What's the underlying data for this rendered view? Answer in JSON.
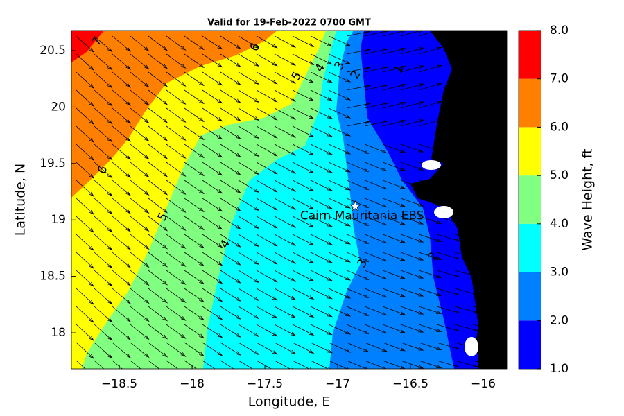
{
  "title": "Valid for 19-Feb-2022 0700 GMT",
  "axes": {
    "xlabel": "Longitude, E",
    "ylabel": "Latitude, N",
    "xlim": [
      -18.829,
      -15.838
    ],
    "ylim": [
      17.681,
      20.678
    ],
    "xticks": [
      {
        "value": -18.5,
        "label": "−18.5"
      },
      {
        "value": -18,
        "label": "−18"
      },
      {
        "value": -17.5,
        "label": "−17.5"
      },
      {
        "value": -17,
        "label": "−17"
      },
      {
        "value": -16.5,
        "label": "−16.5"
      },
      {
        "value": -16,
        "label": "−16"
      }
    ],
    "yticks": [
      18,
      18.5,
      19,
      19.5,
      20,
      20.5
    ]
  },
  "colorbar": {
    "label": "Wave Height, ft",
    "lim": [
      1,
      8
    ],
    "ticks": [
      {
        "value": 1,
        "label": "1.0"
      },
      {
        "value": 2,
        "label": "2.0"
      },
      {
        "value": 3,
        "label": "3.0"
      },
      {
        "value": 4,
        "label": "4.0"
      },
      {
        "value": 5,
        "label": "5.0"
      },
      {
        "value": 6,
        "label": "6.0"
      },
      {
        "value": 7,
        "label": "7.0"
      },
      {
        "value": 8,
        "label": "8.0"
      }
    ],
    "colors": [
      "#0000ff",
      "#0080ff",
      "#00ffff",
      "#80ff80",
      "#ffff00",
      "#ff8000",
      "#ff0000"
    ]
  },
  "station": {
    "name": "Cairn Mauritania EBS",
    "lon": -16.88,
    "lat": 19.12
  },
  "contour_labels": [
    {
      "level": 7,
      "lon": -18.652,
      "lat": 20.58
    },
    {
      "level": 6,
      "lon": -17.567,
      "lat": 20.53
    },
    {
      "level": 6,
      "lon": -18.614,
      "lat": 19.443
    },
    {
      "level": 5,
      "lon": -17.281,
      "lat": 20.273
    },
    {
      "level": 5,
      "lon": -18.2,
      "lat": 19.026
    },
    {
      "level": 4,
      "lon": -17.119,
      "lat": 20.346
    },
    {
      "level": 4,
      "lon": -17.771,
      "lat": 18.786
    },
    {
      "level": 3,
      "lon": -16.986,
      "lat": 20.365
    },
    {
      "level": 3,
      "lon": -16.829,
      "lat": 18.614
    },
    {
      "level": 2,
      "lon": -16.876,
      "lat": 20.285
    },
    {
      "level": 2,
      "lon": -16.343,
      "lat": 18.676
    },
    {
      "level": 1,
      "lon": -16.581,
      "lat": 20.334
    }
  ]
}
